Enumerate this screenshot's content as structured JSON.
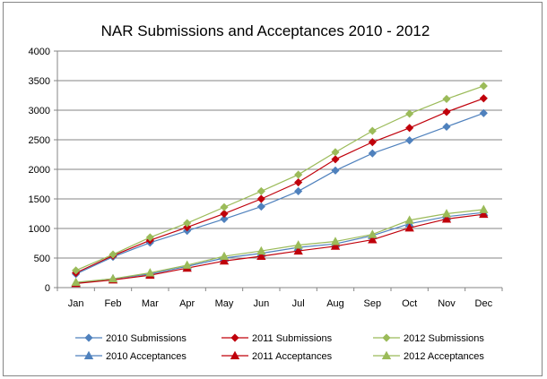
{
  "chart_data": {
    "type": "line",
    "title": "NAR Submissions and Acceptances 2010 - 2012",
    "categories": [
      "Jan",
      "Feb",
      "Mar",
      "Apr",
      "May",
      "Jun",
      "Jul",
      "Aug",
      "Sep",
      "Oct",
      "Nov",
      "Dec"
    ],
    "ylim": [
      0,
      4000
    ],
    "yticks": [
      "0",
      "500",
      "1000",
      "1500",
      "2000",
      "2500",
      "3000",
      "3500",
      "4000"
    ],
    "grid": true,
    "legend_position": "bottom",
    "series": [
      {
        "name": "2010 Submissions",
        "color": "#4F81BD",
        "marker": "diamond",
        "values": [
          230,
          520,
          760,
          960,
          1160,
          1370,
          1630,
          1980,
          2270,
          2490,
          2720,
          2950
        ]
      },
      {
        "name": "2011 Submissions",
        "color": "#C0000B",
        "marker": "diamond",
        "values": [
          250,
          540,
          800,
          1020,
          1250,
          1500,
          1780,
          2170,
          2460,
          2700,
          2970,
          3200
        ]
      },
      {
        "name": "2012 Submissions",
        "color": "#9BBB59",
        "marker": "diamond",
        "values": [
          290,
          560,
          850,
          1090,
          1360,
          1630,
          1910,
          2290,
          2650,
          2940,
          3190,
          3410
        ]
      },
      {
        "name": "2010 Acceptances",
        "color": "#4F81BD",
        "marker": "triangle",
        "values": [
          80,
          150,
          230,
          360,
          500,
          580,
          680,
          740,
          880,
          1080,
          1200,
          1270
        ]
      },
      {
        "name": "2011 Acceptances",
        "color": "#C0000B",
        "marker": "triangle",
        "values": [
          70,
          130,
          210,
          330,
          450,
          530,
          620,
          700,
          810,
          1010,
          1160,
          1240
        ]
      },
      {
        "name": "2012 Acceptances",
        "color": "#9BBB59",
        "marker": "triangle",
        "values": [
          90,
          150,
          250,
          380,
          530,
          620,
          720,
          780,
          900,
          1140,
          1250,
          1320
        ]
      }
    ]
  }
}
